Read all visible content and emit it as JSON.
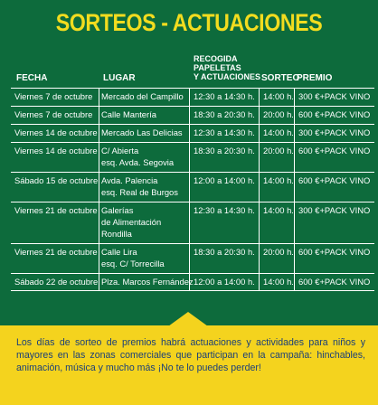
{
  "title": "SORTEOS - ACTUACIONES",
  "headers": {
    "fecha": "FECHA",
    "lugar": "LUGAR",
    "recogida": [
      "RECOGIDA",
      "PAPELETAS",
      "Y ACTUACIONES"
    ],
    "sorteo": "SORTEO",
    "premio": "PREMIO"
  },
  "rows": [
    {
      "fecha": "Viernes 7 de octubre",
      "lugar": [
        "Mercado del Campillo"
      ],
      "hora": "12:30 a 14:30 h.",
      "sorteo": "14:00 h.",
      "premio": "300 €+PACK VINO"
    },
    {
      "fecha": "Viernes 7 de octubre",
      "lugar": [
        "Calle Mantería"
      ],
      "hora": "18:30 a 20:30 h.",
      "sorteo": "20:00 h.",
      "premio": "600 €+PACK VINO"
    },
    {
      "fecha": "Viernes 14 de octubre",
      "lugar": [
        "Mercado Las Delicias"
      ],
      "hora": "12:30 a 14:30 h.",
      "sorteo": "14:00 h.",
      "premio": "300 €+PACK VINO"
    },
    {
      "fecha": "Viernes 14 de octubre",
      "lugar": [
        "C/ Abierta",
        "esq. Avda. Segovia"
      ],
      "hora": "18:30 a 20:30 h.",
      "sorteo": "20:00 h.",
      "premio": "600 €+PACK VINO"
    },
    {
      "fecha": "Sábado 15 de octubre",
      "lugar": [
        "Avda. Palencia",
        "esq. Real de Burgos"
      ],
      "hora": "12:00 a 14:00 h.",
      "sorteo": "14:00 h.",
      "premio": "600 €+PACK VINO"
    },
    {
      "fecha": "Viernes 21 de octubre",
      "lugar": [
        "Galerías",
        "de Alimentación",
        "Rondilla"
      ],
      "hora": "12:30 a 14:30 h.",
      "sorteo": "14:00 h.",
      "premio": "300 €+PACK VINO"
    },
    {
      "fecha": "Viernes 21 de octubre",
      "lugar": [
        "Calle Lira",
        "esq. C/ Torrecilla"
      ],
      "hora": "18:30 a 20:30 h.",
      "sorteo": "20:00 h.",
      "premio": "600 €+PACK VINO"
    },
    {
      "fecha": "Sábado 22 de octubre",
      "lugar": [
        "Plza. Marcos Fernández"
      ],
      "hora": "12:00 a 14:00 h.",
      "sorteo": "14:00 h.",
      "premio": "600 €+PACK VINO"
    }
  ],
  "banner": "Los días de sorteo de premios habrá actuaciones y actividades para niños y mayores en las zonas comerciales que participan en la campaña: hinchables, animación, música y mucho más ¡No te lo puedes perder!",
  "colors": {
    "background": "#0d6b3c",
    "title": "#f2dc1f",
    "banner": "#f4d31e",
    "banner_text": "#1a3f7a"
  }
}
